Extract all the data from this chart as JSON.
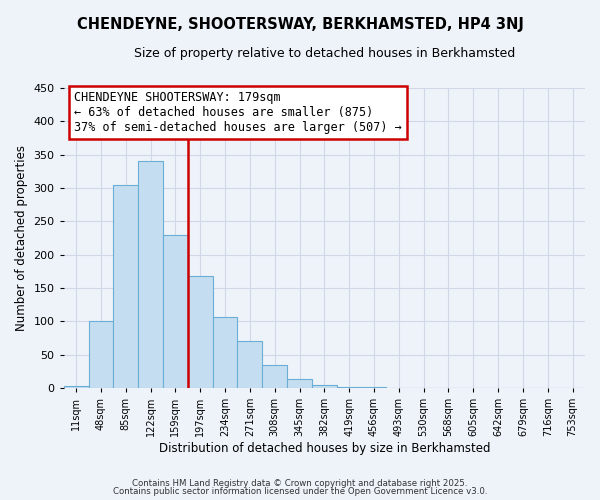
{
  "title": "CHENDEYNE, SHOOTERSWAY, BERKHAMSTED, HP4 3NJ",
  "subtitle": "Size of property relative to detached houses in Berkhamsted",
  "xlabel": "Distribution of detached houses by size in Berkhamsted",
  "ylabel": "Number of detached properties",
  "bin_labels": [
    "11sqm",
    "48sqm",
    "85sqm",
    "122sqm",
    "159sqm",
    "197sqm",
    "234sqm",
    "271sqm",
    "308sqm",
    "345sqm",
    "382sqm",
    "419sqm",
    "456sqm",
    "493sqm",
    "530sqm",
    "568sqm",
    "605sqm",
    "642sqm",
    "679sqm",
    "716sqm",
    "753sqm"
  ],
  "bar_values": [
    3,
    101,
    305,
    340,
    230,
    168,
    107,
    70,
    35,
    13,
    5,
    2,
    1,
    0,
    0,
    0,
    0,
    0,
    0,
    0,
    0
  ],
  "bar_color": "#c5ddf0",
  "bar_edge_color": "#6aaed6",
  "vline_color": "#cc0000",
  "annotation_title": "CHENDEYNE SHOOTERSWAY: 179sqm",
  "annotation_line1": "← 63% of detached houses are smaller (875)",
  "annotation_line2": "37% of semi-detached houses are larger (507) →",
  "annotation_box_color": "#ffffff",
  "annotation_box_edge": "#cc0000",
  "ylim": [
    0,
    450
  ],
  "yticks": [
    0,
    50,
    100,
    150,
    200,
    250,
    300,
    350,
    400,
    450
  ],
  "grid_color": "#d0d8e8",
  "bg_color": "#eef3fa",
  "footnote1": "Contains HM Land Registry data © Crown copyright and database right 2025.",
  "footnote2": "Contains public sector information licensed under the Open Government Licence v3.0."
}
